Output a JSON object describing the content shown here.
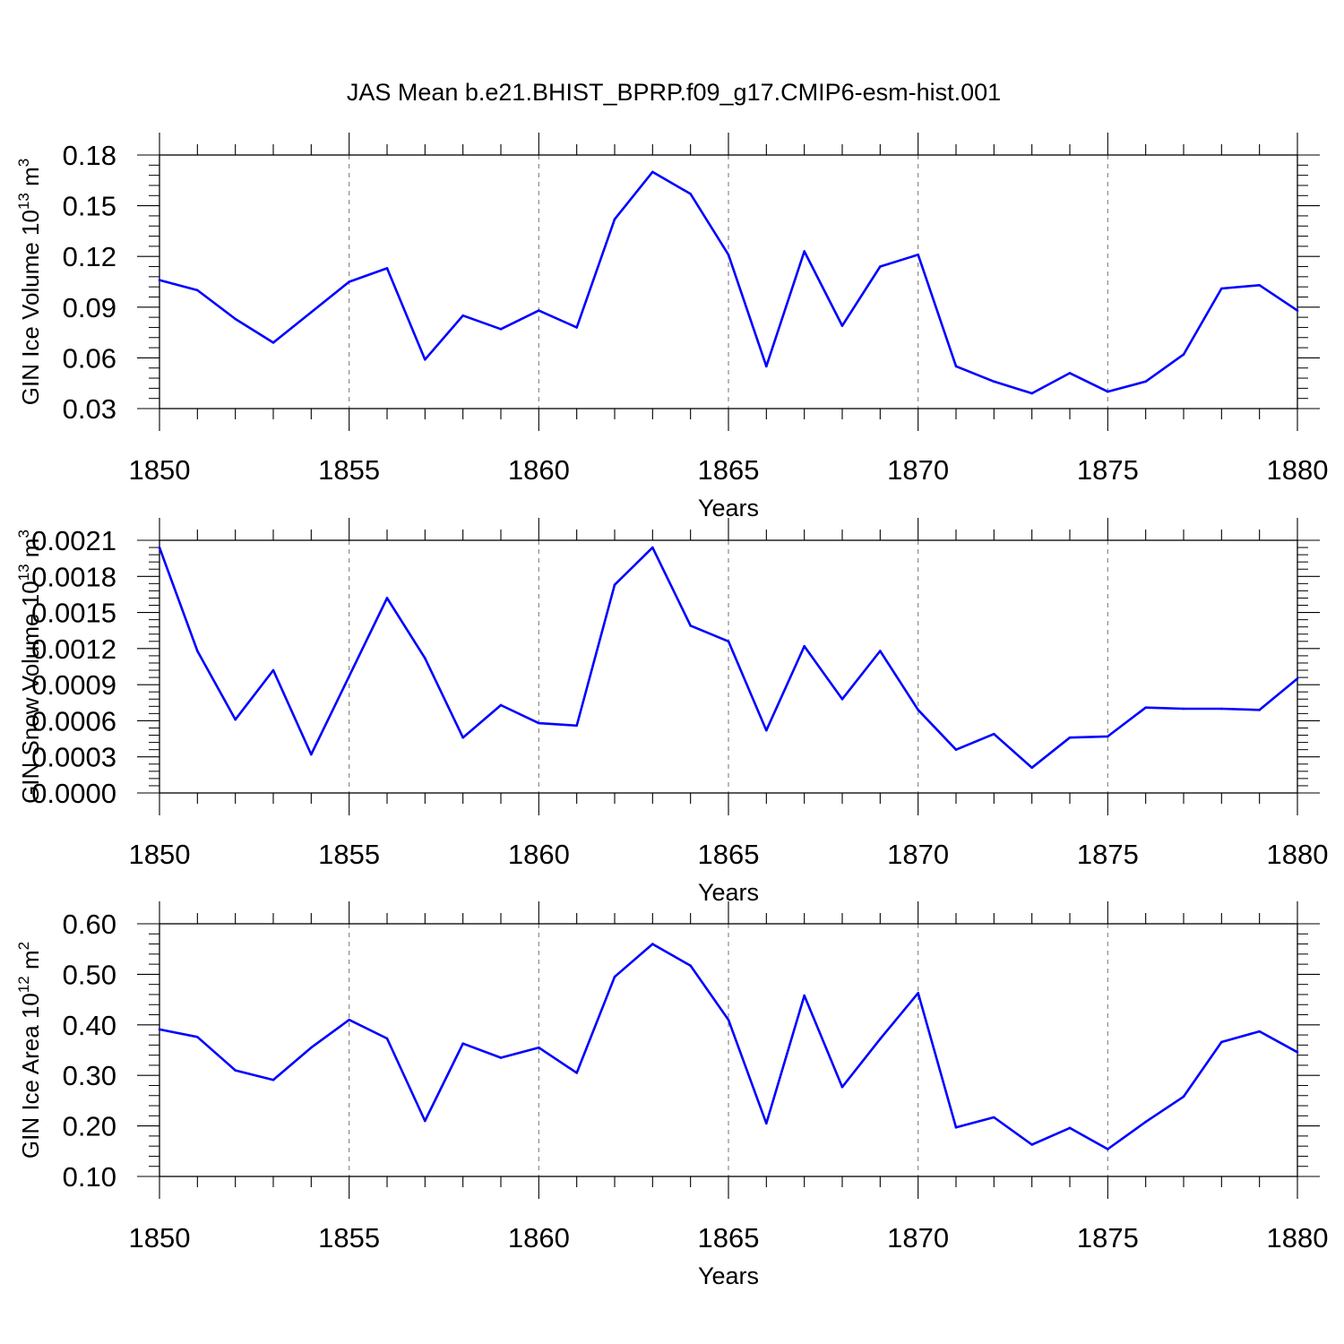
{
  "figure": {
    "title": "JAS Mean b.e21.BHIST_BPRP.f09_g17.CMIP6-esm-hist.001"
  },
  "colors": {
    "series": "#0000ff",
    "axis": "#000000",
    "grid": "#888888"
  },
  "chart_data": [
    {
      "type": "line",
      "ylabel_main": "GIN Ice Volume 10",
      "ylabel_exp": "13",
      "ylabel_unit": " m",
      "ylabel_unit_exp": "3",
      "xlabel": "Years",
      "xlim": [
        1850,
        1880
      ],
      "ylim": [
        0.03,
        0.18
      ],
      "x_ticks": [
        "1850",
        "1855",
        "1860",
        "1865",
        "1870",
        "1875",
        "1880"
      ],
      "y_ticks": [
        "0.03",
        "0.06",
        "0.09",
        "0.12",
        "0.15",
        "0.18"
      ],
      "grid": "vertical dashed at major x ticks",
      "x": [
        1850,
        1851,
        1852,
        1853,
        1854,
        1855,
        1856,
        1857,
        1858,
        1859,
        1860,
        1861,
        1862,
        1863,
        1864,
        1865,
        1866,
        1867,
        1868,
        1869,
        1870,
        1871,
        1872,
        1873,
        1874,
        1875,
        1876,
        1877,
        1878,
        1879,
        1880
      ],
      "values": [
        0.106,
        0.1,
        0.083,
        0.069,
        0.087,
        0.105,
        0.113,
        0.059,
        0.085,
        0.077,
        0.088,
        0.078,
        0.142,
        0.17,
        0.157,
        0.121,
        0.055,
        0.123,
        0.079,
        0.114,
        0.121,
        0.055,
        0.046,
        0.039,
        0.051,
        0.04,
        0.046,
        0.062,
        0.101,
        0.103,
        0.088
      ]
    },
    {
      "type": "line",
      "ylabel_main": "GIN Snow Volume 10",
      "ylabel_exp": "13",
      "ylabel_unit": " m",
      "ylabel_unit_exp": "3",
      "xlabel": "Years",
      "xlim": [
        1850,
        1880
      ],
      "ylim": [
        0.0,
        0.0021
      ],
      "x_ticks": [
        "1850",
        "1855",
        "1860",
        "1865",
        "1870",
        "1875",
        "1880"
      ],
      "y_ticks": [
        "0.0000",
        "0.0003",
        "0.0006",
        "0.0009",
        "0.0012",
        "0.0015",
        "0.0018",
        "0.0021"
      ],
      "grid": "vertical dashed at major x ticks",
      "x": [
        1850,
        1851,
        1852,
        1853,
        1854,
        1855,
        1856,
        1857,
        1858,
        1859,
        1860,
        1861,
        1862,
        1863,
        1864,
        1865,
        1866,
        1867,
        1868,
        1869,
        1870,
        1871,
        1872,
        1873,
        1874,
        1875,
        1876,
        1877,
        1878,
        1879,
        1880
      ],
      "values": [
        0.00204,
        0.00118,
        0.00061,
        0.00102,
        0.00032,
        0.00097,
        0.00162,
        0.00112,
        0.00046,
        0.00073,
        0.00058,
        0.00056,
        0.00173,
        0.00204,
        0.00139,
        0.00126,
        0.00052,
        0.00122,
        0.00078,
        0.00118,
        0.00069,
        0.00036,
        0.00049,
        0.00021,
        0.00046,
        0.00047,
        0.00071,
        0.0007,
        0.0007,
        0.00069,
        0.00095
      ]
    },
    {
      "type": "line",
      "ylabel_main": "GIN Ice Area 10",
      "ylabel_exp": "12",
      "ylabel_unit": " m",
      "ylabel_unit_exp": "2",
      "xlabel": "Years",
      "xlim": [
        1850,
        1880
      ],
      "ylim": [
        0.1,
        0.6
      ],
      "x_ticks": [
        "1850",
        "1855",
        "1860",
        "1865",
        "1870",
        "1875",
        "1880"
      ],
      "y_ticks": [
        "0.10",
        "0.20",
        "0.30",
        "0.40",
        "0.50",
        "0.60"
      ],
      "grid": "vertical dashed at major x ticks",
      "x": [
        1850,
        1851,
        1852,
        1853,
        1854,
        1855,
        1856,
        1857,
        1858,
        1859,
        1860,
        1861,
        1862,
        1863,
        1864,
        1865,
        1866,
        1867,
        1868,
        1869,
        1870,
        1871,
        1872,
        1873,
        1874,
        1875,
        1876,
        1877,
        1878,
        1879,
        1880
      ],
      "values": [
        0.391,
        0.376,
        0.31,
        0.291,
        0.355,
        0.41,
        0.373,
        0.21,
        0.363,
        0.335,
        0.355,
        0.305,
        0.495,
        0.56,
        0.517,
        0.41,
        0.205,
        0.458,
        0.277,
        0.372,
        0.463,
        0.197,
        0.217,
        0.163,
        0.196,
        0.154,
        0.208,
        0.258,
        0.366,
        0.387,
        0.346
      ]
    }
  ]
}
